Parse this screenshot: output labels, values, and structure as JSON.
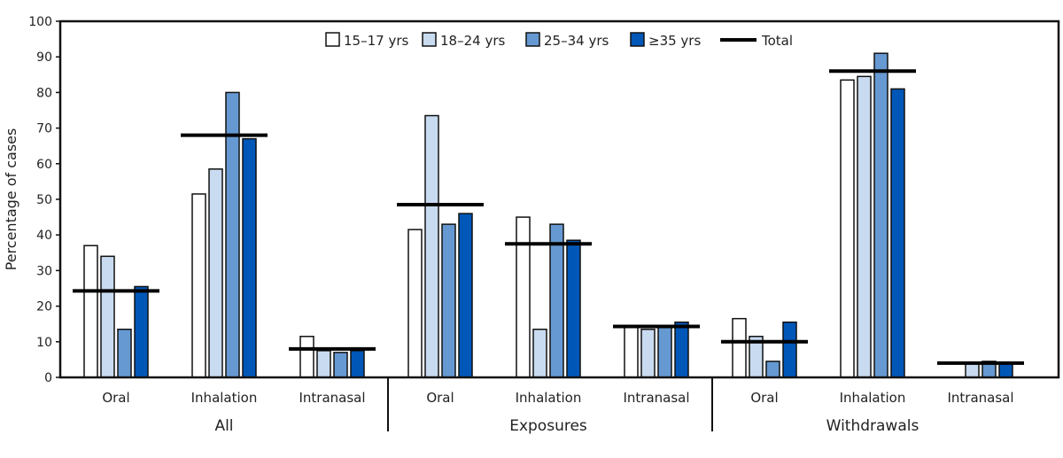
{
  "chart_data": {
    "type": "bar",
    "ylabel": "Percentage of cases",
    "ylim": [
      0,
      100
    ],
    "yticks": [
      0,
      10,
      20,
      30,
      40,
      50,
      60,
      70,
      80,
      90,
      100
    ],
    "grid": false,
    "legend_position": "top-center",
    "groups": [
      {
        "label": "All",
        "categories": [
          "Oral",
          "Inhalation",
          "Intranasal"
        ]
      },
      {
        "label": "Exposures",
        "categories": [
          "Oral",
          "Inhalation",
          "Intranasal"
        ]
      },
      {
        "label": "Withdrawals",
        "categories": [
          "Oral",
          "Inhalation",
          "Intranasal"
        ]
      }
    ],
    "series": [
      {
        "name": "15–17 yrs",
        "color": "#ffffff",
        "values": [
          37,
          51.5,
          11.5,
          41.5,
          45,
          14,
          16.5,
          83.5,
          0
        ]
      },
      {
        "name": "18–24 yrs",
        "color": "#c9dbf0",
        "values": [
          34,
          58.5,
          7.5,
          73.5,
          13.5,
          13.5,
          11.5,
          84.5,
          4
        ]
      },
      {
        "name": "25–34 yrs",
        "color": "#6699d2",
        "values": [
          13.5,
          80,
          7,
          43,
          43,
          14,
          4.5,
          91,
          4.5
        ]
      },
      {
        "name": "≥35 yrs",
        "color": "#0057b8",
        "values": [
          25.5,
          67,
          7.5,
          46,
          38.5,
          15.5,
          15.5,
          81,
          4
        ]
      }
    ],
    "total": {
      "name": "Total",
      "color": "#000000",
      "values": [
        24.3,
        68,
        8,
        48.5,
        37.5,
        14.3,
        10,
        86,
        4
      ]
    }
  }
}
